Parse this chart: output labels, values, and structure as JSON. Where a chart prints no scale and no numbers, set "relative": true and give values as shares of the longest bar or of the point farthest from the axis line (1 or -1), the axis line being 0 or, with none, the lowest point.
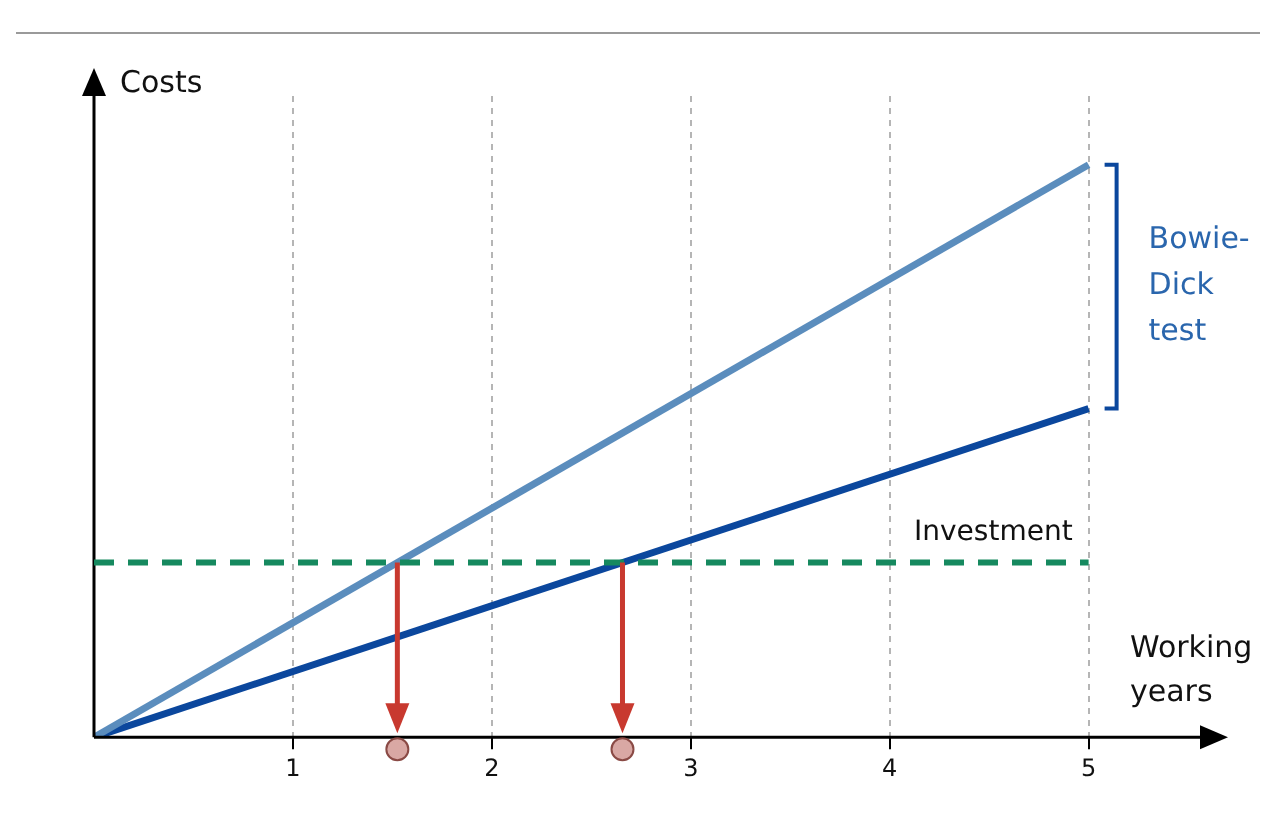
{
  "chart_data": {
    "type": "line",
    "relative": true,
    "xlabel": "Working years",
    "ylabel": "Costs",
    "x": [
      0,
      5
    ],
    "xlim": [
      0,
      5.56
    ],
    "xticks": [
      1,
      2,
      3,
      4,
      5
    ],
    "grid": "x",
    "legend": false,
    "marker": "none",
    "line_style": "solid",
    "series": [
      {
        "color": "#5b8dbd",
        "values": [
          0,
          1
        ]
      },
      {
        "color": "#0b479d",
        "values": [
          0,
          0.574
        ]
      }
    ],
    "ref_lines": [
      {
        "axis": "y",
        "value": 0.305,
        "label": "Investment",
        "color": "#16895f",
        "line_style": "dashed"
      }
    ],
    "annotations": [
      "Bowie-Dick test"
    ]
  }
}
